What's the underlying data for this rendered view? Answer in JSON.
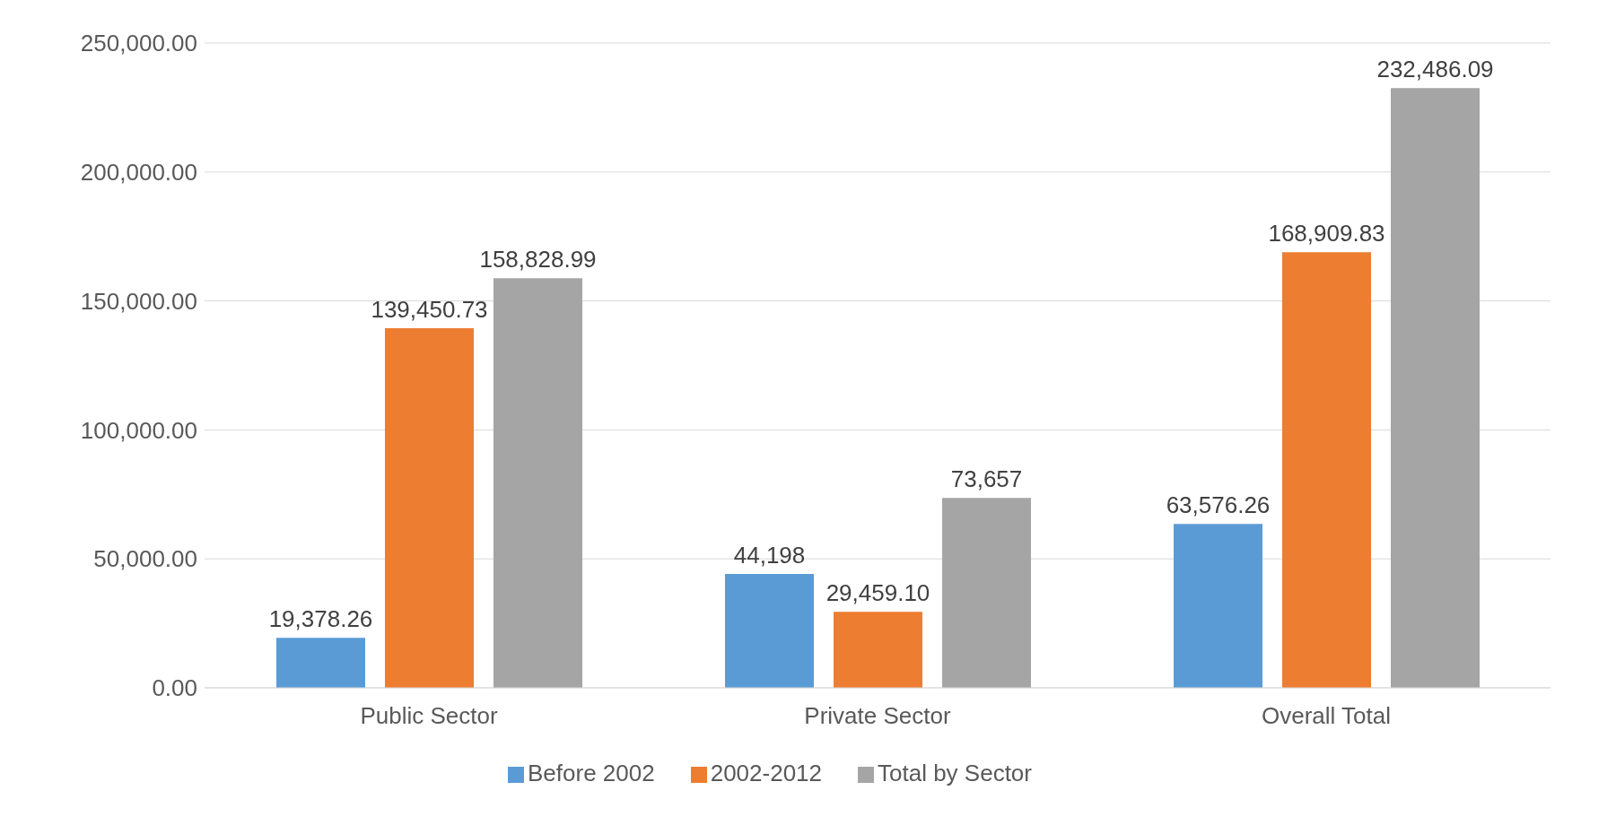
{
  "chart_data": {
    "type": "bar",
    "categories": [
      "Public Sector",
      "Private Sector",
      "Overall Total"
    ],
    "series": [
      {
        "name": "Before 2002",
        "color": "#5b9bd5",
        "values": [
          19378.26,
          44198,
          63576.26
        ],
        "value_labels": [
          "19,378.26",
          "44,198",
          "63,576.26"
        ]
      },
      {
        "name": "2002-2012",
        "color": "#ed7d31",
        "values": [
          139450.73,
          29459.1,
          168909.83
        ],
        "value_labels": [
          "139,450.73",
          "29,459.10",
          "168,909.83"
        ]
      },
      {
        "name": "Total by Sector",
        "color": "#a5a5a5",
        "values": [
          158828.99,
          73657,
          232486.09
        ],
        "value_labels": [
          "158,828.99",
          "73,657",
          "232,486.09"
        ]
      }
    ],
    "ylim": [
      0,
      250000
    ],
    "yticks": [
      {
        "value": 0,
        "label": "0.00"
      },
      {
        "value": 50000,
        "label": "50,000.00"
      },
      {
        "value": 100000,
        "label": "100,000.00"
      },
      {
        "value": 150000,
        "label": "150,000.00"
      },
      {
        "value": 200000,
        "label": "200,000.00"
      },
      {
        "value": 250000,
        "label": "250,000.00"
      }
    ],
    "grid": "y",
    "legend": "bottom"
  }
}
